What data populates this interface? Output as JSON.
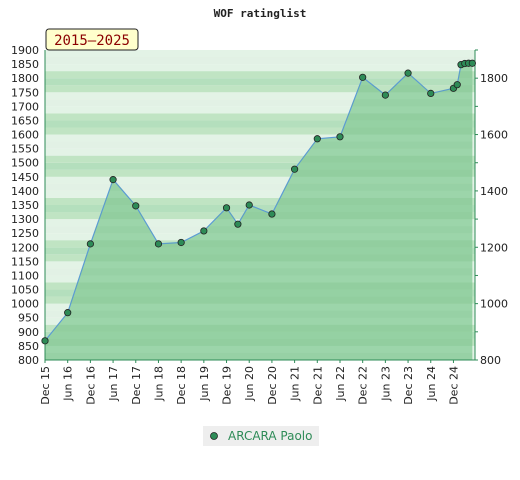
{
  "chart_data": {
    "type": "area",
    "title": "WOF ratinglist",
    "period_badge": "2015–2025",
    "x_tick_labels": [
      "Dec 15",
      "Jun 16",
      "Dec 16",
      "Jun 17",
      "Dec 17",
      "Jun 18",
      "Dec 18",
      "Jun 19",
      "Dec 19",
      "Jun 20",
      "Dec 20",
      "Jun 21",
      "Dec 21",
      "Jun 22",
      "Dec 22",
      "Jun 23",
      "Dec 23",
      "Jun 24",
      "Dec 24"
    ],
    "y_left_ticks": [
      800,
      850,
      900,
      950,
      1000,
      1050,
      1100,
      1150,
      1200,
      1250,
      1300,
      1350,
      1400,
      1450,
      1500,
      1550,
      1600,
      1650,
      1700,
      1750,
      1800,
      1850,
      1900
    ],
    "y_right_ticks": [
      800,
      1000,
      1200,
      1400,
      1600,
      1800
    ],
    "ylim": [
      800,
      1900
    ],
    "grid": "horizontal bands",
    "legend_position": "bottom-center",
    "series": [
      {
        "name": "ARCARA Paolo",
        "color": "#2e8b57",
        "line_color": "#5b9bd5",
        "fill_color": "#8fcf9f",
        "x": [
          "2015-12",
          "2016-06",
          "2016-12",
          "2017-06",
          "2017-12",
          "2018-06",
          "2018-12",
          "2019-06",
          "2019-12",
          "2020-03",
          "2020-06",
          "2020-12",
          "2021-06",
          "2021-12",
          "2022-06",
          "2022-12",
          "2023-06",
          "2023-12",
          "2024-06",
          "2024-12",
          "2025-01",
          "2025-02",
          "2025-03",
          "2025-04",
          "2025-05"
        ],
        "values": [
          868,
          968,
          1212,
          1440,
          1347,
          1212,
          1217,
          1258,
          1340,
          1282,
          1350,
          1318,
          1477,
          1585,
          1592,
          1803,
          1740,
          1818,
          1746,
          1764,
          1777,
          1848,
          1852,
          1853,
          1853
        ]
      }
    ]
  }
}
